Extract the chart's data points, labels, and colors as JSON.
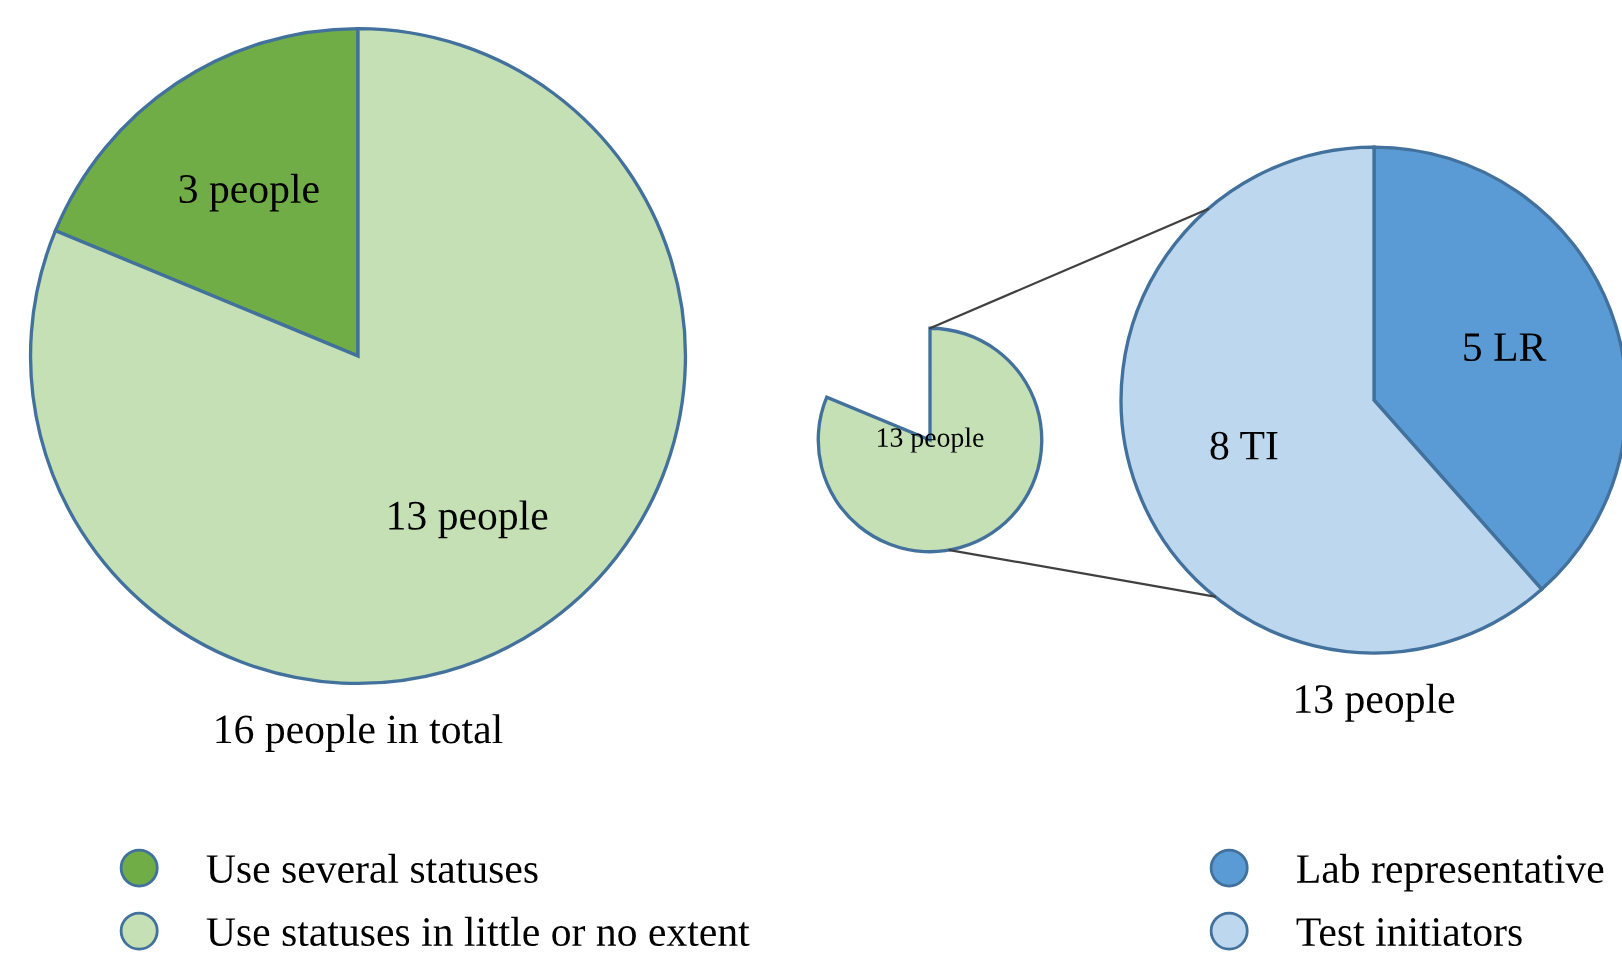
{
  "chart_data": [
    {
      "type": "pie",
      "categories": [
        "Use several statuses",
        "Use statuses in little or no extent"
      ],
      "values": [
        3,
        13
      ],
      "colors": [
        "#70ad47",
        "#c5e0b4"
      ],
      "value_labels": [
        "3 people",
        "13 people"
      ],
      "xlabel": "16 people in total",
      "legend": "bottom"
    },
    {
      "type": "other",
      "annotations": [
        "13 people"
      ]
    },
    {
      "type": "pie",
      "categories": [
        "Lab representative",
        "Test initiators"
      ],
      "values": [
        5,
        8
      ],
      "colors": [
        "#5b9bd5",
        "#bdd7ee"
      ],
      "value_labels": [
        "5 LR",
        "8 TI"
      ],
      "xlabel": "13 people",
      "legend": "bottom"
    }
  ]
}
